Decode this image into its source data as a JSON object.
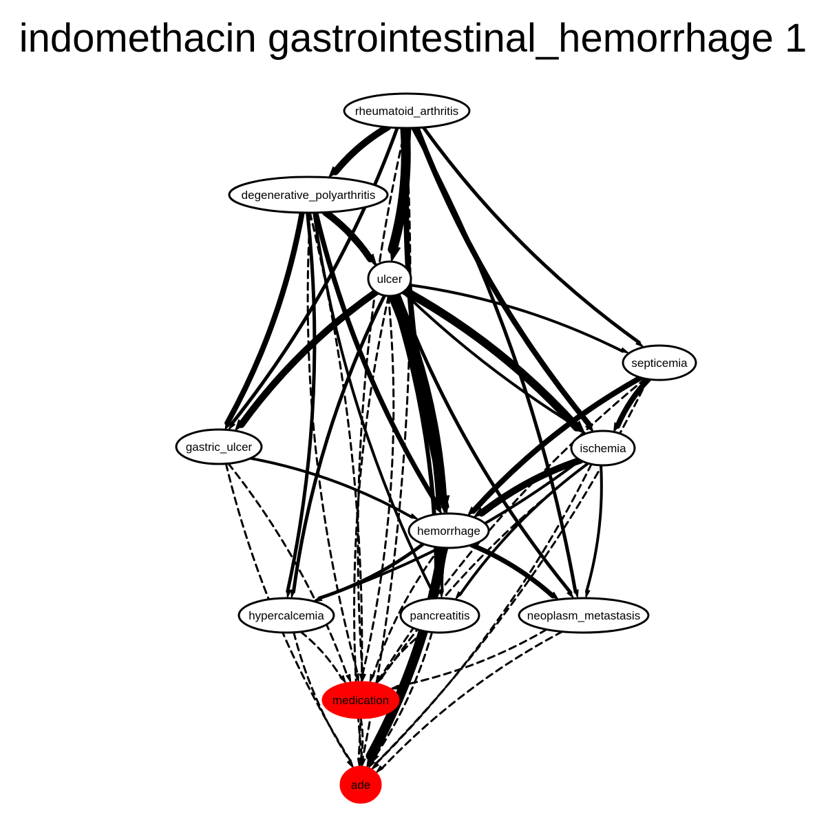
{
  "title": "indomethacin gastrointestinal_hemorrhage 1",
  "colors": {
    "highlight": "#ff0000",
    "node_fill": "#ffffff",
    "stroke": "#000000"
  },
  "nodes": [
    {
      "id": "rheumatoid_arthritis",
      "label": "rheumatoid_arthritis",
      "highlight": false
    },
    {
      "id": "degenerative_polyarthritis",
      "label": "degenerative_polyarthritis",
      "highlight": false
    },
    {
      "id": "ulcer",
      "label": "ulcer",
      "highlight": false
    },
    {
      "id": "septicemia",
      "label": "septicemia",
      "highlight": false
    },
    {
      "id": "gastric_ulcer",
      "label": "gastric_ulcer",
      "highlight": false
    },
    {
      "id": "ischemia",
      "label": "ischemia",
      "highlight": false
    },
    {
      "id": "hemorrhage",
      "label": "hemorrhage",
      "highlight": false
    },
    {
      "id": "hypercalcemia",
      "label": "hypercalcemia",
      "highlight": false
    },
    {
      "id": "pancreatitis",
      "label": "pancreatitis",
      "highlight": false
    },
    {
      "id": "neoplasm_metastasis",
      "label": "neoplasm_metastasis",
      "highlight": false
    },
    {
      "id": "medication",
      "label": "medication",
      "highlight": true
    },
    {
      "id": "ade",
      "label": "ade",
      "highlight": true
    }
  ],
  "edges": [
    {
      "from": "rheumatoid_arthritis",
      "to": "degenerative_polyarthritis",
      "style": "solid",
      "weight": 10
    },
    {
      "from": "rheumatoid_arthritis",
      "to": "ulcer",
      "style": "solid",
      "weight": 14
    },
    {
      "from": "rheumatoid_arthritis",
      "to": "hemorrhage",
      "style": "solid",
      "weight": 8
    },
    {
      "from": "rheumatoid_arthritis",
      "to": "ischemia",
      "style": "solid",
      "weight": 8
    },
    {
      "from": "rheumatoid_arthritis",
      "to": "septicemia",
      "style": "solid",
      "weight": 5
    },
    {
      "from": "rheumatoid_arthritis",
      "to": "neoplasm_metastasis",
      "style": "solid",
      "weight": 5
    },
    {
      "from": "rheumatoid_arthritis",
      "to": "gastric_ulcer",
      "style": "solid",
      "weight": 5
    },
    {
      "from": "rheumatoid_arthritis",
      "to": "medication",
      "style": "dashed",
      "weight": 3
    },
    {
      "from": "rheumatoid_arthritis",
      "to": "ade",
      "style": "dashed",
      "weight": 3
    },
    {
      "from": "degenerative_polyarthritis",
      "to": "ulcer",
      "style": "solid",
      "weight": 10
    },
    {
      "from": "degenerative_polyarthritis",
      "to": "gastric_ulcer",
      "style": "solid",
      "weight": 8
    },
    {
      "from": "degenerative_polyarthritis",
      "to": "hypercalcemia",
      "style": "solid",
      "weight": 5
    },
    {
      "from": "degenerative_polyarthritis",
      "to": "pancreatitis",
      "style": "solid",
      "weight": 4
    },
    {
      "from": "degenerative_polyarthritis",
      "to": "hemorrhage",
      "style": "solid",
      "weight": 7
    },
    {
      "from": "degenerative_polyarthritis",
      "to": "ischemia",
      "style": "solid",
      "weight": 4
    },
    {
      "from": "degenerative_polyarthritis",
      "to": "medication",
      "style": "dashed",
      "weight": 3
    },
    {
      "from": "degenerative_polyarthritis",
      "to": "ade",
      "style": "dashed",
      "weight": 3
    },
    {
      "from": "ulcer",
      "to": "gastric_ulcer",
      "style": "solid",
      "weight": 10
    },
    {
      "from": "ulcer",
      "to": "hemorrhage",
      "style": "solid",
      "weight": 16
    },
    {
      "from": "ulcer",
      "to": "ischemia",
      "style": "solid",
      "weight": 12
    },
    {
      "from": "ulcer",
      "to": "septicemia",
      "style": "solid",
      "weight": 4
    },
    {
      "from": "ulcer",
      "to": "hypercalcemia",
      "style": "solid",
      "weight": 5
    },
    {
      "from": "ulcer",
      "to": "pancreatitis",
      "style": "solid",
      "weight": 6
    },
    {
      "from": "ulcer",
      "to": "neoplasm_metastasis",
      "style": "solid",
      "weight": 5
    },
    {
      "from": "ulcer",
      "to": "medication",
      "style": "dashed",
      "weight": 3
    },
    {
      "from": "ulcer",
      "to": "ade",
      "style": "dashed",
      "weight": 3
    },
    {
      "from": "septicemia",
      "to": "hemorrhage",
      "style": "solid",
      "weight": 8
    },
    {
      "from": "septicemia",
      "to": "ischemia",
      "style": "solid",
      "weight": 8
    },
    {
      "from": "septicemia",
      "to": "medication",
      "style": "dashed",
      "weight": 3
    },
    {
      "from": "septicemia",
      "to": "ade",
      "style": "dashed",
      "weight": 3
    },
    {
      "from": "gastric_ulcer",
      "to": "hemorrhage",
      "style": "solid",
      "weight": 4
    },
    {
      "from": "gastric_ulcer",
      "to": "medication",
      "style": "dashed",
      "weight": 3
    },
    {
      "from": "gastric_ulcer",
      "to": "ade",
      "style": "dashed",
      "weight": 3
    },
    {
      "from": "ischemia",
      "to": "hemorrhage",
      "style": "solid",
      "weight": 10
    },
    {
      "from": "ischemia",
      "to": "hypercalcemia",
      "style": "solid",
      "weight": 4
    },
    {
      "from": "ischemia",
      "to": "pancreatitis",
      "style": "solid",
      "weight": 4
    },
    {
      "from": "ischemia",
      "to": "neoplasm_metastasis",
      "style": "solid",
      "weight": 4
    },
    {
      "from": "ischemia",
      "to": "medication",
      "style": "dashed",
      "weight": 3
    },
    {
      "from": "ischemia",
      "to": "ade",
      "style": "dashed",
      "weight": 3
    },
    {
      "from": "hemorrhage",
      "to": "hypercalcemia",
      "style": "solid",
      "weight": 5
    },
    {
      "from": "hemorrhage",
      "to": "pancreatitis",
      "style": "solid",
      "weight": 4
    },
    {
      "from": "hemorrhage",
      "to": "neoplasm_metastasis",
      "style": "solid",
      "weight": 7
    },
    {
      "from": "hemorrhage",
      "to": "ade",
      "style": "solid",
      "weight": 14
    },
    {
      "from": "hemorrhage",
      "to": "medication",
      "style": "dashed",
      "weight": 3
    },
    {
      "from": "hypercalcemia",
      "to": "medication",
      "style": "dashed",
      "weight": 3
    },
    {
      "from": "hypercalcemia",
      "to": "ade",
      "style": "dashed",
      "weight": 3
    },
    {
      "from": "pancreatitis",
      "to": "medication",
      "style": "dashed",
      "weight": 3
    },
    {
      "from": "pancreatitis",
      "to": "ade",
      "style": "dashed",
      "weight": 3
    },
    {
      "from": "neoplasm_metastasis",
      "to": "medication",
      "style": "dashed",
      "weight": 3
    },
    {
      "from": "neoplasm_metastasis",
      "to": "ade",
      "style": "dashed",
      "weight": 3
    },
    {
      "from": "medication",
      "to": "ade",
      "style": "dashed",
      "weight": 3
    }
  ]
}
